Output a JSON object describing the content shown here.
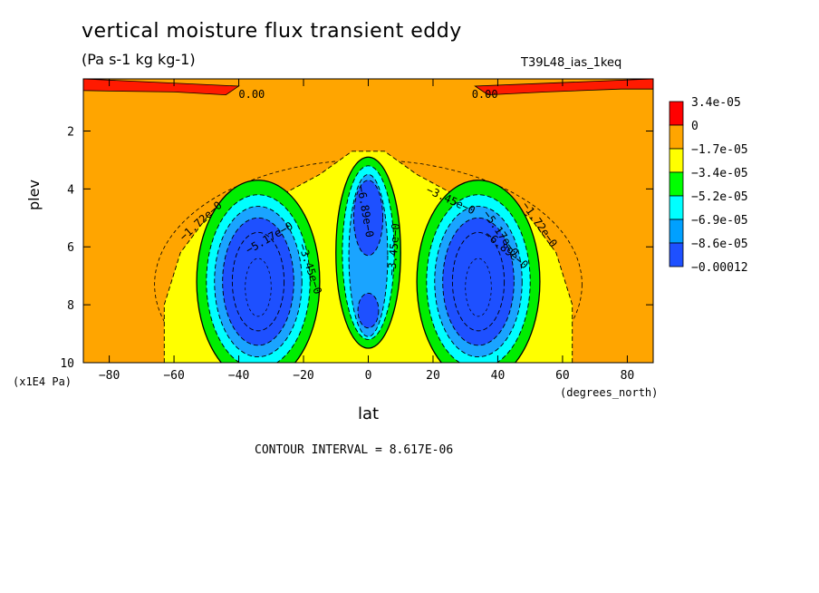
{
  "chart_data": {
    "type": "heatmap",
    "title": "vertical moisture flux transient eddy",
    "subtitle": "(Pa s-1 kg kg-1)",
    "run_id": "T39L48_ias_1keq",
    "xlabel": "lat",
    "x_units": "(degrees_north)",
    "ylabel": "plev",
    "y_units": "(x1E4 Pa)",
    "xlim": [
      -88,
      88
    ],
    "ylim": [
      10,
      0.2
    ],
    "x_ticks": [
      -80,
      -60,
      -40,
      -20,
      0,
      20,
      40,
      60,
      80
    ],
    "y_ticks": [
      2,
      4,
      6,
      8,
      10
    ],
    "contour_interval_text": "CONTOUR INTERVAL = 8.617E-06",
    "colorbar": {
      "labels": [
        "3.4e-05",
        "0",
        "−1.7e-05",
        "−3.4e-05",
        "−5.2e-05",
        "−6.9e-05",
        "−8.6e-05",
        "−0.00012"
      ],
      "colors": [
        "#ff0000",
        "#ffa500",
        "#ffff00",
        "#00ff00",
        "#00ffff",
        "#00a0ff",
        "#1e50ff"
      ]
    },
    "fill_colors": {
      "red": "#ff1a00",
      "orange": "#ffa500",
      "yellow": "#ffff00",
      "green": "#00ee00",
      "cyan": "#00ffff",
      "lightblue": "#1aa4ff",
      "blue": "#1e50ff"
    },
    "features": [
      {
        "name": "southern cell",
        "center_lat": -34,
        "center_plev": 7.0,
        "min_level": "−0.00012"
      },
      {
        "name": "equatorial cell",
        "center_lat": 0,
        "center_plev": 5.5,
        "min_level": "−8.6e-05"
      },
      {
        "name": "northern cell",
        "center_lat": 34,
        "center_plev": 7.0,
        "min_level": "−0.00012"
      },
      {
        "name": "upper positive band south",
        "lat_range": [
          -88,
          -40
        ],
        "plev_range": [
          0.2,
          0.8
        ],
        "sign": "positive"
      },
      {
        "name": "upper positive band north",
        "lat_range": [
          33,
          88
        ],
        "plev_range": [
          0.2,
          0.8
        ],
        "sign": "positive"
      }
    ],
    "contour_labels": [
      "0.00",
      "0.00",
      "−1.72e−0",
      "−1.72e−0",
      "−3.45e−0",
      "−3.45e−0",
      "−3.45e−0",
      "−5.17e−0",
      "−5.17e−0",
      "−6.89e−0",
      "−6.89e−0"
    ]
  }
}
